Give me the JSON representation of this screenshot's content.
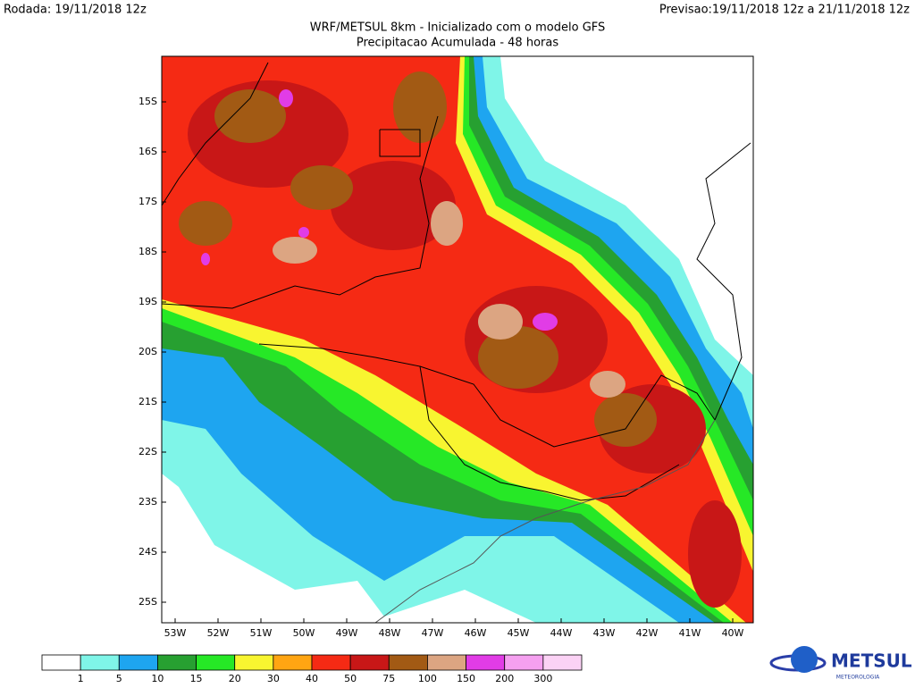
{
  "header": {
    "run": "Rodada: 19/11/2018 12z",
    "forecast": "Previsao:19/11/2018 12z a 21/11/2018 12z",
    "title": "WRF/METSUL 8km - Inicializado com o modelo GFS",
    "subtitle": "Precipitacao Acumulada - 48 horas"
  },
  "map": {
    "lat_labels": [
      "15S",
      "16S",
      "17S",
      "18S",
      "19S",
      "20S",
      "21S",
      "22S",
      "23S",
      "24S",
      "25S"
    ],
    "lon_labels": [
      "53W",
      "52W",
      "51W",
      "50W",
      "49W",
      "48W",
      "47W",
      "46W",
      "45W",
      "44W",
      "43W",
      "42W",
      "41W",
      "40W"
    ]
  },
  "legend": {
    "colors": [
      "#ffffff",
      "#7ff5e8",
      "#1ea5f0",
      "#27a031",
      "#26e826",
      "#f8f530",
      "#ffa512",
      "#f52a14",
      "#c81717",
      "#a25a14",
      "#dca582",
      "#e13ce6",
      "#f5a0f0",
      "#fbd2f5"
    ],
    "labels": [
      "1",
      "5",
      "10",
      "15",
      "20",
      "30",
      "40",
      "50",
      "75",
      "100",
      "150",
      "200",
      "300"
    ]
  },
  "logo": {
    "name": "METSUL",
    "tagline": "METEOROLOGIA"
  }
}
